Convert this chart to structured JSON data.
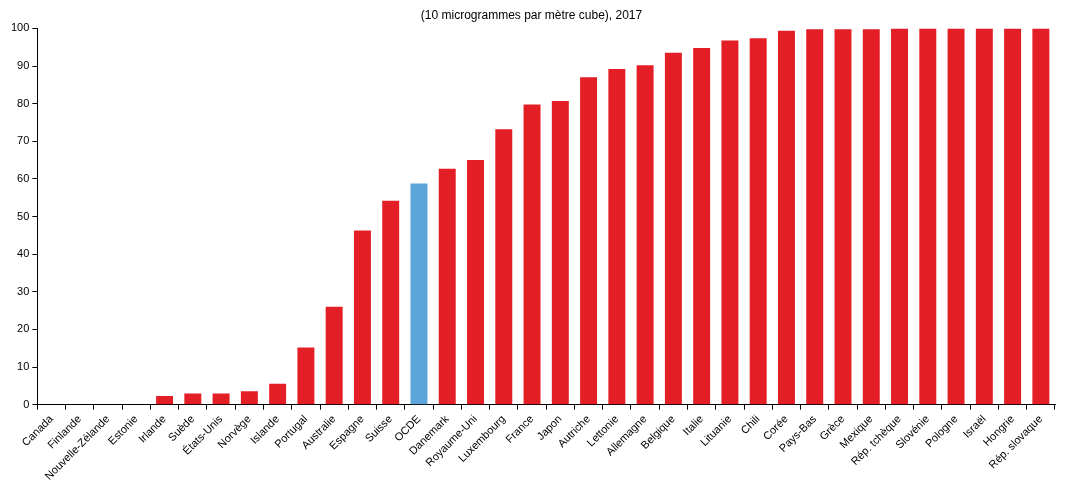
{
  "chart_data": {
    "type": "bar",
    "title": "(10 microgrammes par mètre cube), 2017",
    "categories": [
      "Canada",
      "Finlande",
      "Nouvelle-Zélande",
      "Estonie",
      "Irlande",
      "Suède",
      "États-Unis",
      "Norvège",
      "Islande",
      "Portugal",
      "Australie",
      "Espagne",
      "Suisse",
      "OCDE",
      "Danemark",
      "Royaume-Uni",
      "Luxembourg",
      "France",
      "Japon",
      "Autriche",
      "Lettonie",
      "Allemagne",
      "Belgique",
      "Italie",
      "Lituanie",
      "Chili",
      "Corée",
      "Pays-Bas",
      "Grèce",
      "Mexique",
      "Rép. tchèque",
      "Slovénie",
      "Pologne",
      "Israël",
      "Hongrie",
      "Rép. slovaque"
    ],
    "values": [
      0,
      0,
      0,
      0,
      2.3,
      3,
      3,
      3.6,
      5.6,
      15.2,
      26,
      46.3,
      54.2,
      58.8,
      62.7,
      65,
      73.2,
      79.8,
      80.7,
      87,
      89.2,
      90.2,
      93.5,
      94.8,
      96.8,
      97.4,
      99.4,
      99.8,
      99.8,
      99.8,
      100,
      100,
      100,
      100,
      100,
      100
    ],
    "colors": [
      "#e31e24",
      "#e31e24",
      "#e31e24",
      "#e31e24",
      "#e31e24",
      "#e31e24",
      "#e31e24",
      "#e31e24",
      "#e31e24",
      "#e31e24",
      "#e31e24",
      "#e31e24",
      "#e31e24",
      "#5ca5db",
      "#e31e24",
      "#e31e24",
      "#e31e24",
      "#e31e24",
      "#e31e24",
      "#e31e24",
      "#e31e24",
      "#e31e24",
      "#e31e24",
      "#e31e24",
      "#e31e24",
      "#e31e24",
      "#e31e24",
      "#e31e24",
      "#e31e24",
      "#e31e24",
      "#e31e24",
      "#e31e24",
      "#e31e24",
      "#e31e24",
      "#e31e24",
      "#e31e24"
    ],
    "ylim": [
      0,
      100
    ],
    "yticks": [
      0,
      10,
      20,
      30,
      40,
      50,
      60,
      70,
      80,
      90,
      100
    ],
    "grid": false,
    "legend": false
  }
}
